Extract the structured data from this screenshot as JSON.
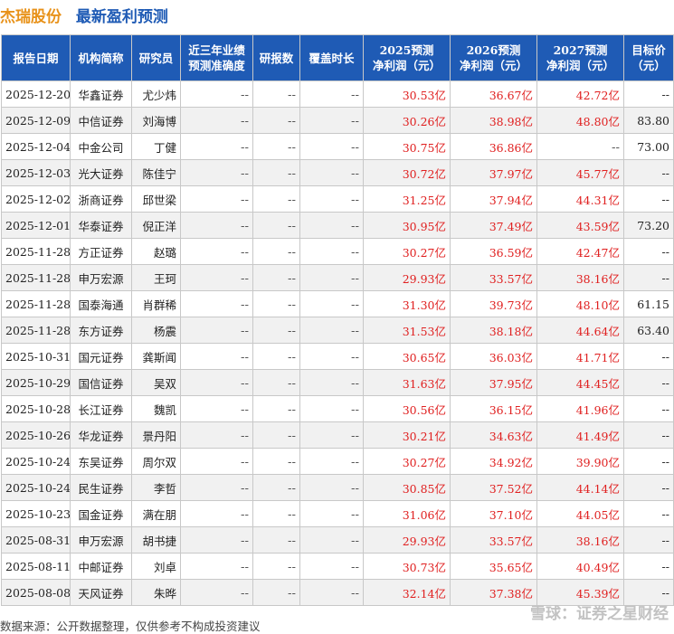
{
  "title": {
    "company": "杰瑞股份",
    "subtitle": "最新盈利预测"
  },
  "headers": {
    "date": "报告日期",
    "org": "机构简称",
    "analyst": "研究员",
    "accuracy": [
      "近三年业绩",
      "预测准确度"
    ],
    "reports": "研报数",
    "coverage": "覆盖时长",
    "p2025": [
      "2025预测",
      "净利润（元）"
    ],
    "p2026": [
      "2026预测",
      "净利润（元）"
    ],
    "p2027": [
      "2027预测",
      "净利润（元）"
    ],
    "target": [
      "目标价",
      "（元）"
    ]
  },
  "rows": [
    {
      "date": "2025-12-20",
      "org": "华鑫证券",
      "analyst": "尤少炜",
      "accuracy": "--",
      "reports": "--",
      "coverage": "--",
      "p2025": "30.53亿",
      "p2026": "36.67亿",
      "p2027": "42.72亿",
      "target": "--"
    },
    {
      "date": "2025-12-09",
      "org": "中信证券",
      "analyst": "刘海博",
      "accuracy": "--",
      "reports": "--",
      "coverage": "--",
      "p2025": "30.26亿",
      "p2026": "38.98亿",
      "p2027": "48.80亿",
      "target": "83.80"
    },
    {
      "date": "2025-12-04",
      "org": "中金公司",
      "analyst": "丁健",
      "accuracy": "--",
      "reports": "--",
      "coverage": "--",
      "p2025": "30.75亿",
      "p2026": "36.86亿",
      "p2027": "--",
      "target": "73.00"
    },
    {
      "date": "2025-12-03",
      "org": "光大证券",
      "analyst": "陈佳宁",
      "accuracy": "--",
      "reports": "--",
      "coverage": "--",
      "p2025": "30.72亿",
      "p2026": "37.97亿",
      "p2027": "45.77亿",
      "target": "--"
    },
    {
      "date": "2025-12-02",
      "org": "浙商证券",
      "analyst": "邱世梁",
      "accuracy": "--",
      "reports": "--",
      "coverage": "--",
      "p2025": "31.25亿",
      "p2026": "37.94亿",
      "p2027": "44.31亿",
      "target": "--"
    },
    {
      "date": "2025-12-01",
      "org": "华泰证券",
      "analyst": "倪正洋",
      "accuracy": "--",
      "reports": "--",
      "coverage": "--",
      "p2025": "30.95亿",
      "p2026": "37.49亿",
      "p2027": "43.59亿",
      "target": "73.20"
    },
    {
      "date": "2025-11-28",
      "org": "方正证券",
      "analyst": "赵璐",
      "accuracy": "--",
      "reports": "--",
      "coverage": "--",
      "p2025": "30.27亿",
      "p2026": "36.59亿",
      "p2027": "42.47亿",
      "target": "--"
    },
    {
      "date": "2025-11-28",
      "org": "申万宏源",
      "analyst": "王珂",
      "accuracy": "--",
      "reports": "--",
      "coverage": "--",
      "p2025": "29.93亿",
      "p2026": "33.57亿",
      "p2027": "38.16亿",
      "target": "--"
    },
    {
      "date": "2025-11-28",
      "org": "国泰海通",
      "analyst": "肖群稀",
      "accuracy": "--",
      "reports": "--",
      "coverage": "--",
      "p2025": "31.30亿",
      "p2026": "39.73亿",
      "p2027": "48.10亿",
      "target": "61.15"
    },
    {
      "date": "2025-11-28",
      "org": "东方证券",
      "analyst": "杨震",
      "accuracy": "--",
      "reports": "--",
      "coverage": "--",
      "p2025": "31.53亿",
      "p2026": "38.18亿",
      "p2027": "44.64亿",
      "target": "63.40"
    },
    {
      "date": "2025-10-31",
      "org": "国元证券",
      "analyst": "龚斯闻",
      "accuracy": "--",
      "reports": "--",
      "coverage": "--",
      "p2025": "30.65亿",
      "p2026": "36.03亿",
      "p2027": "41.71亿",
      "target": "--"
    },
    {
      "date": "2025-10-29",
      "org": "国信证券",
      "analyst": "吴双",
      "accuracy": "--",
      "reports": "--",
      "coverage": "--",
      "p2025": "31.63亿",
      "p2026": "37.95亿",
      "p2027": "44.45亿",
      "target": "--"
    },
    {
      "date": "2025-10-28",
      "org": "长江证券",
      "analyst": "魏凯",
      "accuracy": "--",
      "reports": "--",
      "coverage": "--",
      "p2025": "30.56亿",
      "p2026": "36.15亿",
      "p2027": "41.96亿",
      "target": "--"
    },
    {
      "date": "2025-10-26",
      "org": "华龙证券",
      "analyst": "景丹阳",
      "accuracy": "--",
      "reports": "--",
      "coverage": "--",
      "p2025": "30.21亿",
      "p2026": "34.63亿",
      "p2027": "41.49亿",
      "target": "--"
    },
    {
      "date": "2025-10-24",
      "org": "东吴证券",
      "analyst": "周尔双",
      "accuracy": "--",
      "reports": "--",
      "coverage": "--",
      "p2025": "30.27亿",
      "p2026": "34.92亿",
      "p2027": "39.90亿",
      "target": "--"
    },
    {
      "date": "2025-10-24",
      "org": "民生证券",
      "analyst": "李哲",
      "accuracy": "--",
      "reports": "--",
      "coverage": "--",
      "p2025": "30.85亿",
      "p2026": "37.52亿",
      "p2027": "44.14亿",
      "target": "--"
    },
    {
      "date": "2025-10-23",
      "org": "国金证券",
      "analyst": "满在朋",
      "accuracy": "--",
      "reports": "--",
      "coverage": "--",
      "p2025": "31.06亿",
      "p2026": "37.10亿",
      "p2027": "44.05亿",
      "target": "--"
    },
    {
      "date": "2025-08-31",
      "org": "申万宏源",
      "analyst": "胡书捷",
      "accuracy": "--",
      "reports": "--",
      "coverage": "--",
      "p2025": "29.93亿",
      "p2026": "33.57亿",
      "p2027": "38.16亿",
      "target": "--"
    },
    {
      "date": "2025-08-11",
      "org": "中邮证券",
      "analyst": "刘卓",
      "accuracy": "--",
      "reports": "--",
      "coverage": "--",
      "p2025": "30.73亿",
      "p2026": "35.65亿",
      "p2027": "40.49亿",
      "target": "--"
    },
    {
      "date": "2025-08-08",
      "org": "天风证券",
      "analyst": "朱晔",
      "accuracy": "--",
      "reports": "--",
      "coverage": "--",
      "p2025": "32.14亿",
      "p2026": "37.38亿",
      "p2027": "45.39亿",
      "target": "--"
    }
  ],
  "footer": "数据来源：公开数据整理，仅供参考不构成投资建议",
  "watermark": "雪球：证券之星财经"
}
